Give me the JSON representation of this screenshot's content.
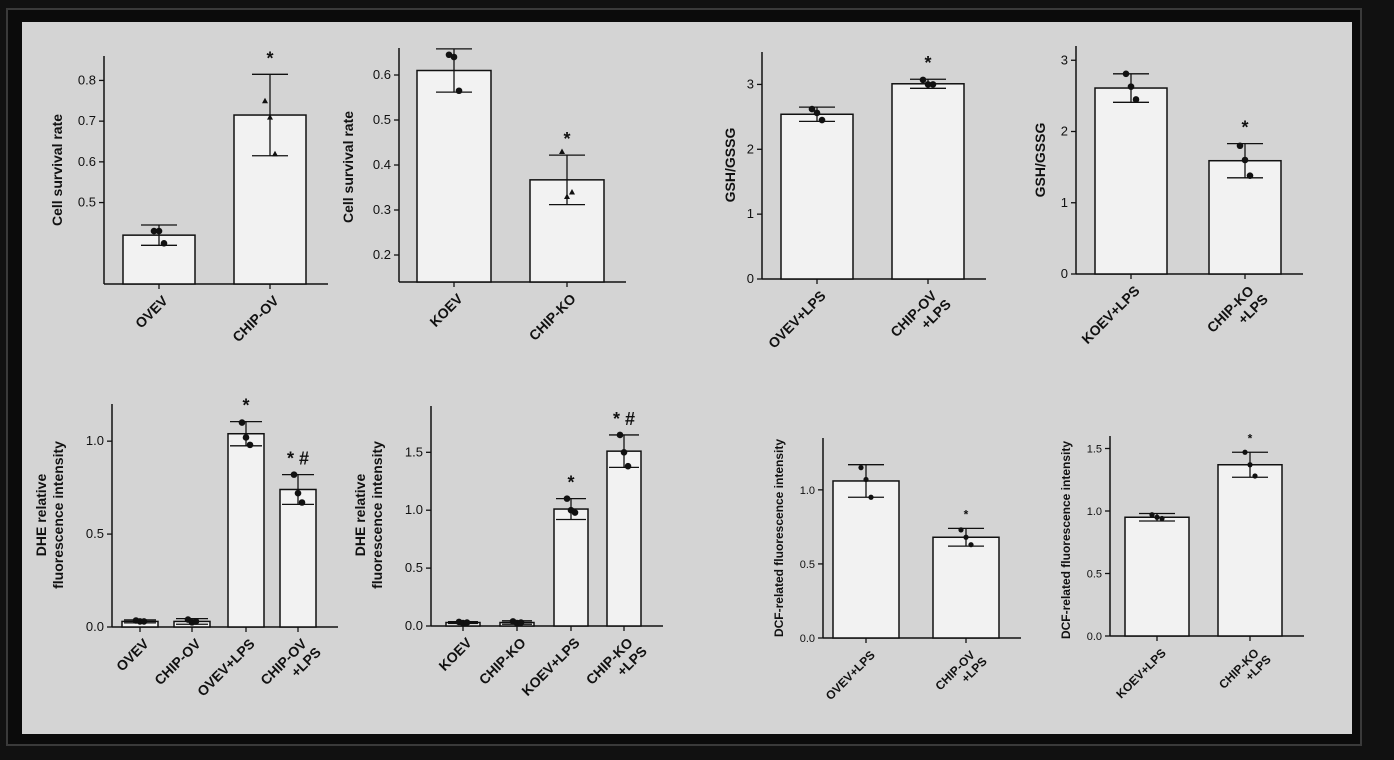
{
  "chart_data": [
    {
      "type": "bar",
      "ylabel": "Cell survival rate",
      "categories": [
        "OVEV",
        "CHIP-OV"
      ],
      "values": [
        0.42,
        0.715
      ],
      "error": [
        0.025,
        0.1
      ],
      "points": [
        [
          0.43,
          0.43,
          0.4
        ],
        [
          0.75,
          0.71,
          0.62
        ]
      ],
      "annotations": [
        "",
        "*"
      ],
      "yticks": [
        0.5,
        0.6,
        0.7,
        0.8
      ],
      "ylim": [
        0.3,
        0.86
      ]
    },
    {
      "type": "bar",
      "ylabel": "Cell survival rate",
      "categories": [
        "KOEV",
        "CHIP-KO"
      ],
      "values": [
        0.61,
        0.367
      ],
      "error": [
        0.048,
        0.055
      ],
      "points": [
        [
          0.645,
          0.64,
          0.565
        ],
        [
          0.43,
          0.33,
          0.34
        ]
      ],
      "annotations": [
        "",
        "*"
      ],
      "yticks": [
        0.2,
        0.3,
        0.4,
        0.5,
        0.6
      ],
      "ylim": [
        0.14,
        0.66
      ]
    },
    {
      "type": "bar",
      "ylabel": "GSH/GSSG",
      "categories": [
        "OVEV+LPS",
        "CHIP-OV\n+LPS"
      ],
      "values": [
        2.54,
        3.01
      ],
      "error": [
        0.11,
        0.07
      ],
      "points": [
        [
          2.62,
          2.56,
          2.45
        ],
        [
          3.07,
          3.0,
          3.0
        ]
      ],
      "annotations": [
        "",
        "*"
      ],
      "yticks": [
        0,
        1,
        2,
        3
      ],
      "ylim": [
        0,
        3.5
      ]
    },
    {
      "type": "bar",
      "ylabel": "GSH/GSSG",
      "categories": [
        "KOEV+LPS",
        "CHIP-KO\n+LPS"
      ],
      "values": [
        2.61,
        1.59
      ],
      "error": [
        0.2,
        0.24
      ],
      "points": [
        [
          2.81,
          2.63,
          2.45
        ],
        [
          1.8,
          1.6,
          1.38
        ]
      ],
      "annotations": [
        "",
        "*"
      ],
      "yticks": [
        0,
        1,
        2,
        3
      ],
      "ylim": [
        0,
        3.2
      ]
    },
    {
      "type": "bar",
      "ylabel": "DHE relative\nfluorescence intensity",
      "categories": [
        "OVEV",
        "CHIP-OV",
        "OVEV+LPS",
        "CHIP-OV\n+LPS"
      ],
      "values": [
        0.03,
        0.03,
        1.04,
        0.74
      ],
      "error": [
        0.008,
        0.015,
        0.065,
        0.08
      ],
      "points": [
        [
          0.035,
          0.03,
          0.03
        ],
        [
          0.04,
          0.025,
          0.03
        ],
        [
          1.1,
          1.02,
          0.98
        ],
        [
          0.82,
          0.72,
          0.67
        ]
      ],
      "annotations": [
        "",
        "",
        "*",
        "* #"
      ],
      "yticks": [
        0.0,
        0.5,
        1.0
      ],
      "ylim": [
        0,
        1.2
      ]
    },
    {
      "type": "bar",
      "ylabel": "DHE relative\nfluorescence intensity",
      "categories": [
        "KOEV",
        "CHIP-KO",
        "KOEV+LPS",
        "CHIP-KO\n+LPS"
      ],
      "values": [
        0.03,
        0.03,
        1.01,
        1.51
      ],
      "error": [
        0.008,
        0.015,
        0.09,
        0.14
      ],
      "points": [
        [
          0.035,
          0.025,
          0.03
        ],
        [
          0.04,
          0.025,
          0.03
        ],
        [
          1.1,
          1.0,
          0.98
        ],
        [
          1.65,
          1.5,
          1.38
        ]
      ],
      "annotations": [
        "",
        "",
        "*",
        "* #"
      ],
      "yticks": [
        0.0,
        0.5,
        1.0,
        1.5
      ],
      "ylim": [
        0,
        1.9
      ]
    },
    {
      "type": "bar",
      "ylabel": "DCF-related fluorescence intensity",
      "categories": [
        "OVEV+LPS",
        "CHIP-OV\n+LPS"
      ],
      "values": [
        1.06,
        0.68
      ],
      "error": [
        0.11,
        0.06
      ],
      "points": [
        [
          1.15,
          1.07,
          0.95
        ],
        [
          0.73,
          0.68,
          0.63
        ]
      ],
      "annotations": [
        "",
        "*"
      ],
      "yticks": [
        0.0,
        0.5,
        1.0
      ],
      "ylim": [
        0,
        1.35
      ]
    },
    {
      "type": "bar",
      "ylabel": "DCF-related fluorescence intensity",
      "categories": [
        "KOEV+LPS",
        "CHIP-KO\n+LPS"
      ],
      "values": [
        0.95,
        1.37
      ],
      "error": [
        0.03,
        0.1
      ],
      "points": [
        [
          0.97,
          0.95,
          0.94
        ],
        [
          1.47,
          1.37,
          1.28
        ]
      ],
      "annotations": [
        "",
        "*"
      ],
      "yticks": [
        0.0,
        0.5,
        1.0,
        1.5
      ],
      "ylim": [
        0,
        1.6
      ]
    }
  ]
}
